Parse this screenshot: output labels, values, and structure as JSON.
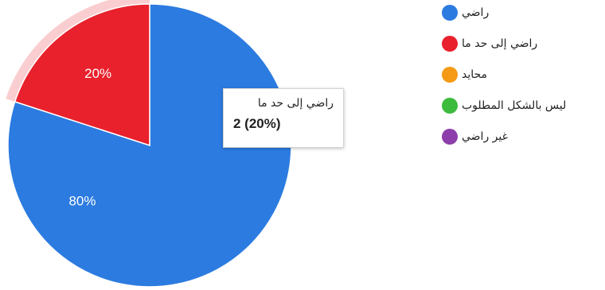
{
  "chart_data": {
    "type": "pie",
    "categories": [
      "راضي",
      "راضي إلى حد ما",
      "محايد",
      "ليس بالشكل المطلوب",
      "غير راضي"
    ],
    "values": [
      8,
      2,
      0,
      0,
      0
    ],
    "slice_labels": [
      "80%",
      "20%",
      "",
      "",
      ""
    ],
    "colors": [
      "#2c7be0",
      "#e8212c",
      "#f59a14",
      "#3dbb3d",
      "#8c3fab"
    ],
    "legend_position": "right",
    "highlighted_index": 1
  },
  "tooltip": {
    "title": "راضي إلى حد ما",
    "value": "2 (20%)"
  }
}
